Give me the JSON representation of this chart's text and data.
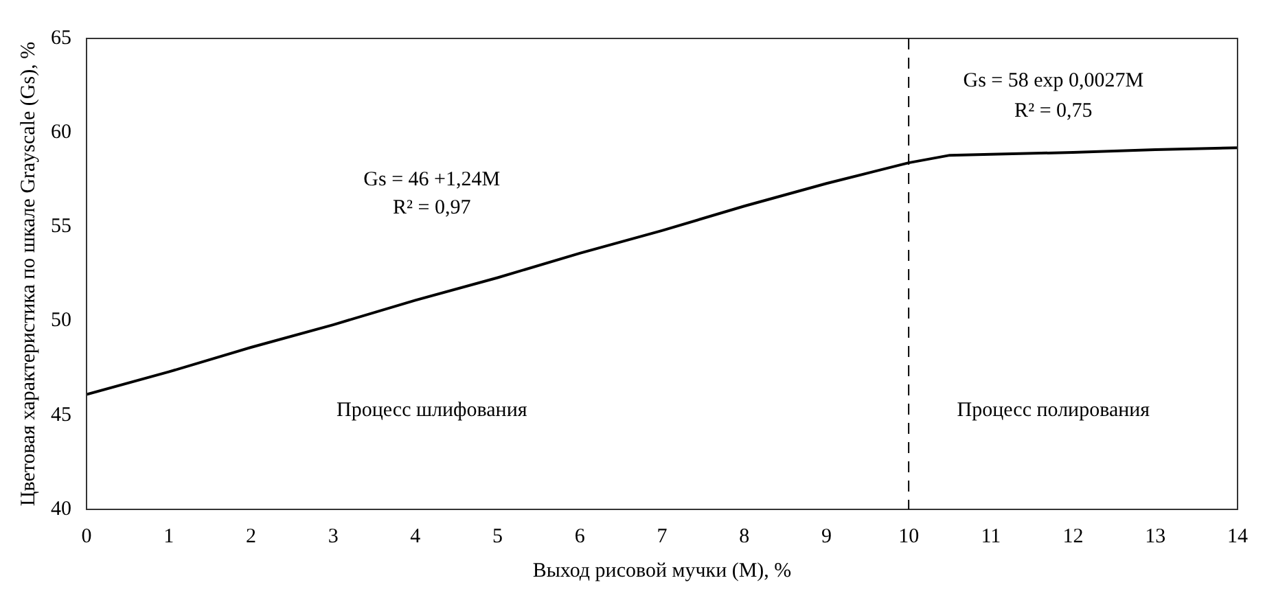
{
  "chart_data": {
    "type": "line",
    "xlabel": "Выход рисовой мучки (M), %",
    "ylabel": "Цветовая характеристика по шкале Grayscale (Gs), %",
    "x": [
      0,
      1,
      2,
      3,
      4,
      5,
      6,
      7,
      8,
      9,
      10,
      10.5,
      11,
      12,
      13,
      14
    ],
    "series": [
      {
        "color": "#000000",
        "values": [
          46.1,
          47.3,
          48.6,
          49.8,
          51.1,
          52.3,
          53.6,
          54.8,
          56.1,
          57.3,
          58.4,
          58.8,
          58.85,
          58.95,
          59.1,
          59.2
        ]
      }
    ],
    "xlim": [
      0,
      14
    ],
    "xticks": [
      0,
      1,
      2,
      3,
      4,
      5,
      6,
      7,
      8,
      9,
      10,
      11,
      12,
      13,
      14
    ],
    "ylim": [
      40,
      65
    ],
    "yticks": [
      40,
      45,
      50,
      55,
      60,
      65
    ],
    "ref_lines": [
      {
        "axis": "x",
        "value": 10,
        "color": "#000000",
        "line_style": "dashed"
      }
    ],
    "annotations": [
      "Gs = 46 +1,24M",
      "R² = 0,97",
      "Gs = 58 exp 0,0027M",
      "R² = 0,75",
      "Процесс шлифования",
      "Процесс полирования"
    ],
    "grid": false,
    "legend": false,
    "marker": "none",
    "line_style": "solid"
  }
}
